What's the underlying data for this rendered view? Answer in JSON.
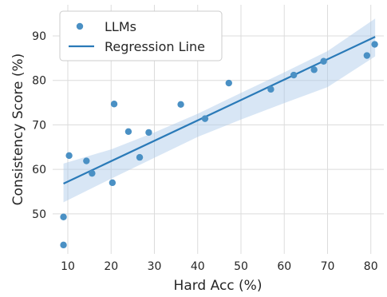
{
  "chart_data": {
    "type": "scatter",
    "xlabel": "Hard Acc (%)",
    "ylabel": "Consistency Score (%)",
    "xlim": [
      6.5,
      83
    ],
    "ylim": [
      41,
      97
    ],
    "xticks": [
      10,
      20,
      30,
      40,
      50,
      60,
      70,
      80
    ],
    "yticks": [
      50,
      60,
      70,
      80,
      90
    ],
    "grid": true,
    "legend_position": "top-left",
    "series": [
      {
        "name": "LLMs",
        "kind": "scatter",
        "color": "#4a90c4",
        "points": [
          {
            "x": 9.0,
            "y": 43.0
          },
          {
            "x": 9.0,
            "y": 49.3
          },
          {
            "x": 10.3,
            "y": 63.1
          },
          {
            "x": 14.3,
            "y": 61.9
          },
          {
            "x": 15.6,
            "y": 59.1
          },
          {
            "x": 20.3,
            "y": 57.0
          },
          {
            "x": 20.7,
            "y": 74.7
          },
          {
            "x": 24.0,
            "y": 68.5
          },
          {
            "x": 26.6,
            "y": 62.7
          },
          {
            "x": 28.7,
            "y": 68.3
          },
          {
            "x": 36.1,
            "y": 74.6
          },
          {
            "x": 41.7,
            "y": 71.4
          },
          {
            "x": 47.2,
            "y": 79.4
          },
          {
            "x": 56.9,
            "y": 78.0
          },
          {
            "x": 62.2,
            "y": 81.2
          },
          {
            "x": 66.9,
            "y": 82.4
          },
          {
            "x": 69.1,
            "y": 84.3
          },
          {
            "x": 79.1,
            "y": 85.6
          },
          {
            "x": 80.9,
            "y": 88.1
          }
        ]
      },
      {
        "name": "Regression Line",
        "kind": "line",
        "color": "#2a7ab8",
        "x": [
          9,
          81
        ],
        "y": [
          56.8,
          89.8
        ],
        "confidence_band": {
          "color": "#a9c8e8",
          "x": [
            9,
            20,
            30,
            40,
            50,
            60,
            70,
            81
          ],
          "upper": [
            61.3,
            64.5,
            68.3,
            72.5,
            77.2,
            81.8,
            86.6,
            93.9
          ],
          "lower": [
            52.6,
            57.9,
            62.6,
            67.3,
            71.2,
            74.9,
            78.5,
            85.4
          ]
        }
      }
    ]
  }
}
